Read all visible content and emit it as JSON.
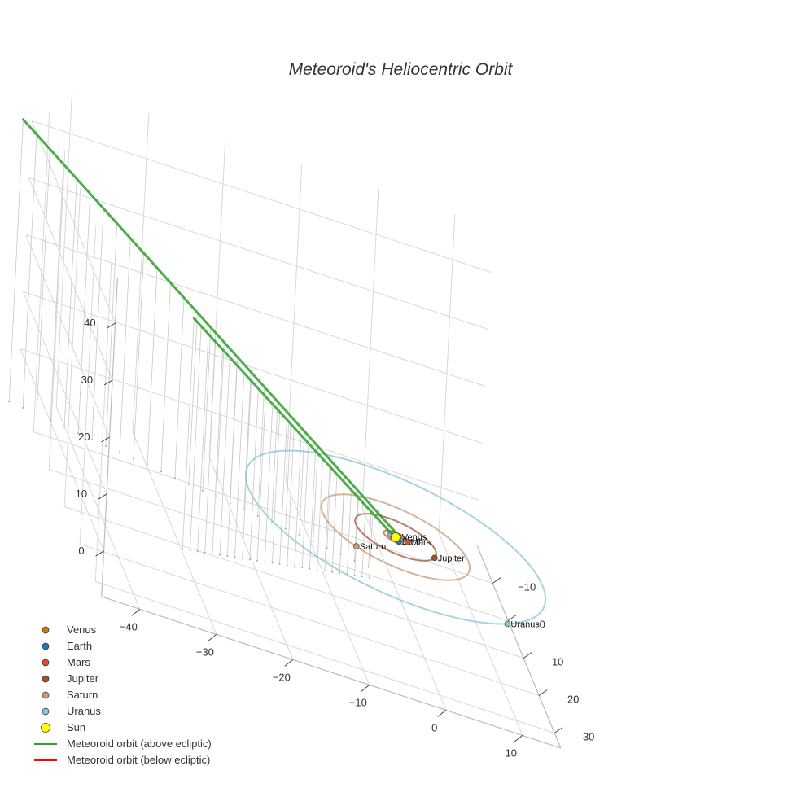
{
  "chart_data": {
    "type": "scatter3d",
    "title": "Meteoroid's Heliocentric Orbit",
    "axes": {
      "x": {
        "ticks": [
          -40,
          -30,
          -20,
          -10,
          0,
          10
        ]
      },
      "y": {
        "ticks": [
          -10,
          0,
          10,
          20,
          30
        ]
      },
      "z": {
        "ticks": [
          0,
          10,
          20,
          30,
          40
        ]
      }
    },
    "planets": [
      {
        "name": "Venus",
        "color": "#c77a1e",
        "orbit_radius": 0.72,
        "position": [
          0.5,
          -0.5,
          0
        ]
      },
      {
        "name": "Earth",
        "color": "#1f77b4",
        "orbit_radius": 1.0,
        "position": [
          0.2,
          1.0,
          0
        ]
      },
      {
        "name": "Mars",
        "color": "#d94f2b",
        "orbit_radius": 1.52,
        "position": [
          1.5,
          0.3,
          0
        ]
      },
      {
        "name": "Jupiter",
        "color": "#a0522d",
        "orbit_radius": 5.2,
        "position": [
          4.6,
          2.4,
          0
        ]
      },
      {
        "name": "Saturn",
        "color": "#c89a72",
        "orbit_radius": 9.5,
        "position": [
          -6.5,
          6.8,
          0
        ]
      },
      {
        "name": "Uranus",
        "color": "#87c5d6",
        "orbit_radius": 19.2,
        "position": [
          11.5,
          15.4,
          0
        ]
      }
    ],
    "sun": {
      "name": "Sun",
      "color": "#ffff00",
      "position": [
        0,
        0,
        0
      ]
    },
    "meteoroid_branches": [
      {
        "name": "Meteoroid orbit (above ecliptic)",
        "color": "#2ca02c",
        "points": [
          [
            0.4,
            -0.3,
            0.3
          ],
          [
            -47,
            -16,
            42
          ]
        ]
      },
      {
        "name": "Meteoroid orbit (above ecliptic)",
        "color": "#2ca02c",
        "points": [
          [
            -0.3,
            0.5,
            0.3
          ],
          [
            -30,
            12,
            33
          ]
        ]
      }
    ],
    "below_segment": {
      "name": "Meteoroid orbit (below ecliptic)",
      "color": "#ff0000",
      "points": [
        [
          -0.2,
          -0.3,
          0
        ],
        [
          0.3,
          0.2,
          -0.4
        ]
      ]
    },
    "legend": [
      {
        "label": "Venus",
        "kind": "dot",
        "color": "#c77a1e"
      },
      {
        "label": "Earth",
        "kind": "dot",
        "color": "#1f77b4"
      },
      {
        "label": "Mars",
        "kind": "dot",
        "color": "#d94f2b"
      },
      {
        "label": "Jupiter",
        "kind": "dot",
        "color": "#a0522d"
      },
      {
        "label": "Saturn",
        "kind": "dot",
        "color": "#c89a72"
      },
      {
        "label": "Uranus",
        "kind": "dot",
        "color": "#87c5d6"
      },
      {
        "label": "Sun",
        "kind": "sun",
        "color": "#ffff00"
      },
      {
        "label": "Meteoroid orbit (above ecliptic)",
        "kind": "line",
        "color": "#2ca02c"
      },
      {
        "label": "Meteoroid orbit (below ecliptic)",
        "kind": "line",
        "color": "#ff0000"
      }
    ],
    "grid": true,
    "legend_position": "bottom-left"
  }
}
